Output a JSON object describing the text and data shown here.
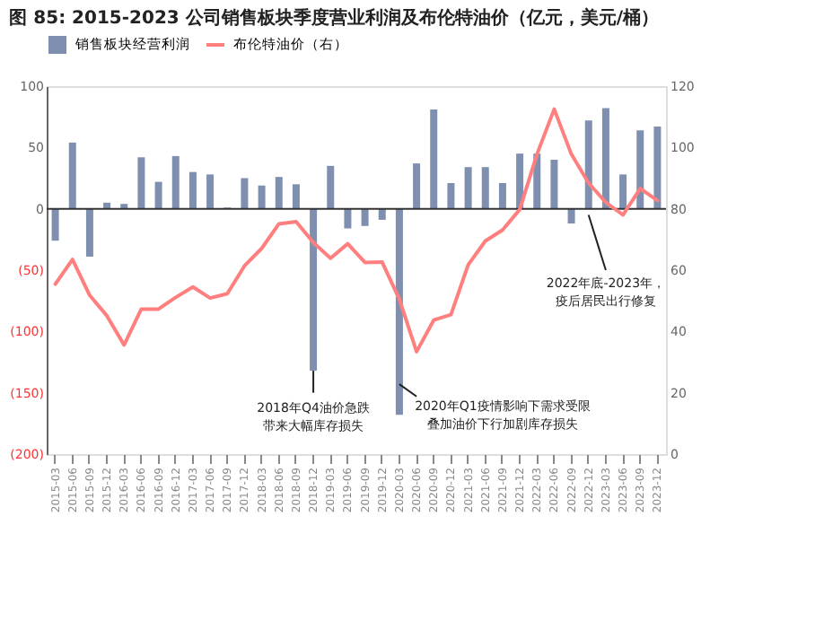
{
  "chart_data": {
    "type": "bar",
    "title": "图 85: 2015-2023 公司销售板块季度营业利润及布伦特油价（亿元，美元/桶）",
    "categories": [
      "2015-03",
      "2015-06",
      "2015-09",
      "2015-12",
      "2016-03",
      "2016-06",
      "2016-09",
      "2016-12",
      "2017-03",
      "2017-06",
      "2017-09",
      "2017-12",
      "2018-03",
      "2018-06",
      "2018-09",
      "2018-12",
      "2019-03",
      "2019-06",
      "2019-09",
      "2019-12",
      "2020-03",
      "2020-06",
      "2020-09",
      "2020-12",
      "2021-03",
      "2021-06",
      "2021-09",
      "2021-12",
      "2022-03",
      "2022-06",
      "2022-09",
      "2022-12",
      "2023-03",
      "2023-06",
      "2023-09",
      "2023-12"
    ],
    "series": [
      {
        "name": "销售板块经营利润",
        "color": "#7f8fb0",
        "values": [
          -26,
          54,
          -39,
          5,
          4,
          42,
          22,
          43,
          30,
          28,
          1,
          25,
          19,
          26,
          20,
          -132,
          35,
          -16,
          -14,
          -9,
          -168,
          37,
          81,
          21,
          34,
          34,
          21,
          45,
          45,
          40,
          -12,
          72,
          82,
          28,
          64,
          67
        ]
      },
      {
        "name": "布伦特油价（右）",
        "type": "line",
        "axis": "y2",
        "color": "#ff7f7f",
        "values": [
          55.4,
          63.5,
          51.8,
          45.1,
          35.6,
          47.3,
          47.3,
          51.1,
          54.5,
          50.9,
          52.3,
          61.4,
          67.1,
          75.1,
          75.8,
          69.0,
          63.9,
          68.6,
          62.5,
          62.6,
          50.5,
          33.4,
          43.7,
          45.5,
          61.7,
          69.5,
          73.1,
          79.8,
          97.8,
          112.5,
          97.8,
          88.4,
          82.1,
          78.0,
          86.6,
          82.7
        ]
      }
    ],
    "ylim": [
      -200,
      100
    ],
    "yticks": [
      {
        "value": -200,
        "label": "(200)"
      },
      {
        "value": -150,
        "label": "(150)"
      },
      {
        "value": -100,
        "label": "(100)"
      },
      {
        "value": -50,
        "label": "(50)"
      },
      0,
      50,
      100
    ],
    "y2lim": [
      0,
      120
    ],
    "y2ticks": [
      0,
      20,
      40,
      60,
      80,
      100,
      120
    ],
    "ref_lines": [
      {
        "axis": "y",
        "value": 0,
        "color": "#333333"
      }
    ],
    "annotations": [
      {
        "text": "2018年Q4油价急跌",
        "x": "2018-12",
        "y": -132
      },
      "带来大幅库存损失",
      {
        "text": "2020年Q1疫情影响下需求受限",
        "x": "2020-03",
        "y": -143
      },
      "叠加油价下行加剧库存损失",
      {
        "text": "2022年底-2023年，",
        "x": "2022-12",
        "y": -5
      },
      "疫后居民出行修复"
    ],
    "legend": "top",
    "grid": false
  }
}
